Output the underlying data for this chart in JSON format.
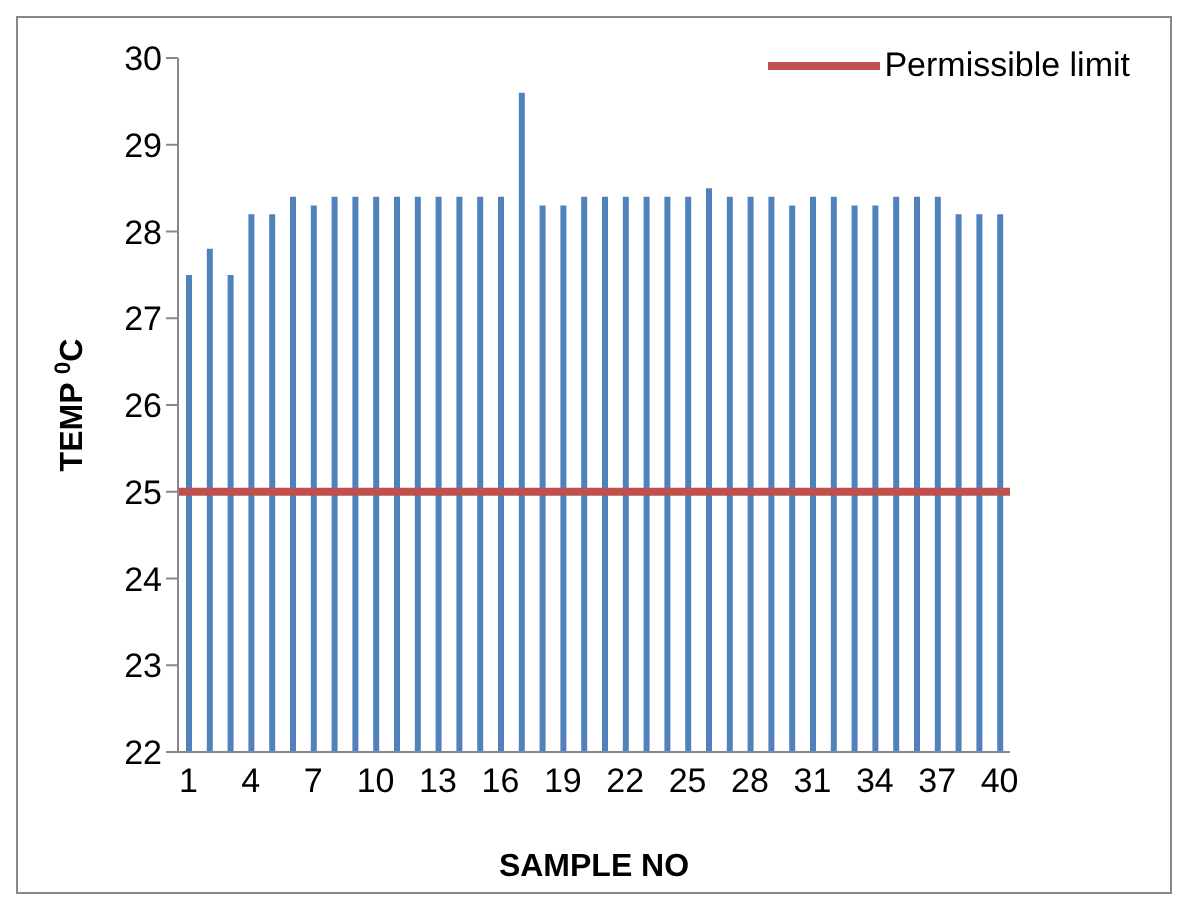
{
  "chart_data": {
    "type": "bar",
    "xlabel": "SAMPLE NO",
    "ylabel": "TEMP $^{0}$C",
    "categories": [
      "1",
      null,
      null,
      "4",
      null,
      null,
      "7",
      null,
      null,
      "10",
      null,
      null,
      "13",
      null,
      null,
      "16",
      null,
      null,
      "19",
      null,
      null,
      "22",
      null,
      null,
      "25",
      null,
      null,
      "28",
      null,
      null,
      "31",
      null,
      null,
      "34",
      null,
      null,
      "37",
      null,
      null,
      "40"
    ],
    "values": [
      27.5,
      27.8,
      27.5,
      28.2,
      28.2,
      28.4,
      28.3,
      28.4,
      28.4,
      28.4,
      28.4,
      28.4,
      28.4,
      28.4,
      28.4,
      28.4,
      29.6,
      28.3,
      28.3,
      28.4,
      28.4,
      28.4,
      28.4,
      28.4,
      28.4,
      28.5,
      28.4,
      28.4,
      28.4,
      28.3,
      28.4,
      28.4,
      28.3,
      28.3,
      28.4,
      28.4,
      28.4,
      28.2,
      28.2,
      28.2
    ],
    "color": "#4f81bd",
    "ylim": [
      22,
      30
    ],
    "yticks": [
      22,
      23,
      24,
      25,
      26,
      27,
      28,
      29,
      30
    ],
    "ref_lines": [
      {
        "axis": "y",
        "value": 25,
        "label": "Permissible limit",
        "color": "#c0504d"
      }
    ],
    "legend": "top right",
    "grid": false
  }
}
